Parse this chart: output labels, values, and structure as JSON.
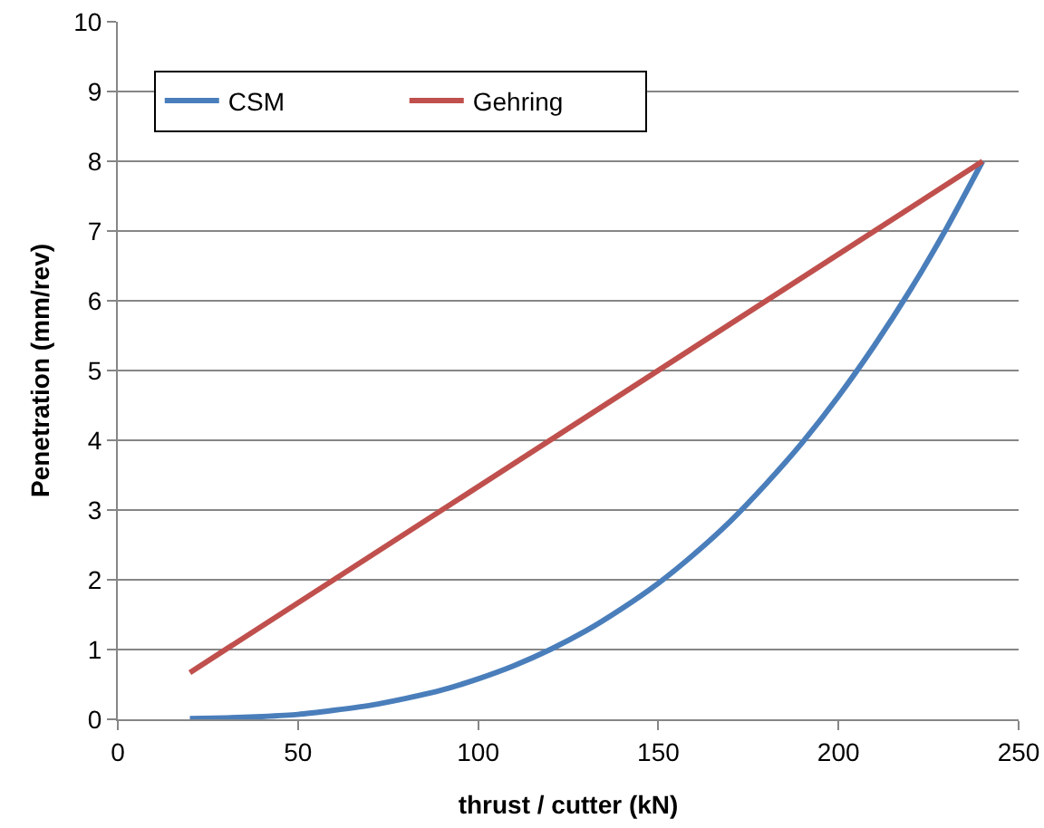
{
  "chart_data": {
    "type": "line",
    "xlabel": "thrust / cutter (kN)",
    "ylabel": "Penetration (mm/rev)",
    "xlim": [
      0,
      250
    ],
    "xticks": [
      0,
      50,
      100,
      150,
      200,
      250
    ],
    "ylim": [
      0,
      10
    ],
    "yticks": [
      0,
      1,
      2,
      3,
      4,
      5,
      6,
      7,
      8,
      9,
      10
    ],
    "grid": "y",
    "legend": "top left",
    "marker": "none",
    "line_style": "solid",
    "series": [
      {
        "name": "CSM",
        "color": "#4a7ebb",
        "x": [
          20,
          30,
          40,
          50,
          60,
          70,
          80,
          90,
          100,
          110,
          120,
          130,
          140,
          150,
          160,
          170,
          180,
          190,
          200,
          210,
          220,
          230,
          240
        ],
        "values": [
          0.01,
          0.02,
          0.04,
          0.07,
          0.13,
          0.2,
          0.3,
          0.42,
          0.58,
          0.77,
          1.0,
          1.27,
          1.59,
          1.95,
          2.37,
          2.84,
          3.38,
          3.97,
          4.63,
          5.36,
          6.16,
          7.04,
          8.0
        ]
      },
      {
        "name": "Gehring",
        "color": "#c0504d",
        "x": [
          20,
          240
        ],
        "values": [
          0.67,
          8.0
        ]
      }
    ]
  }
}
